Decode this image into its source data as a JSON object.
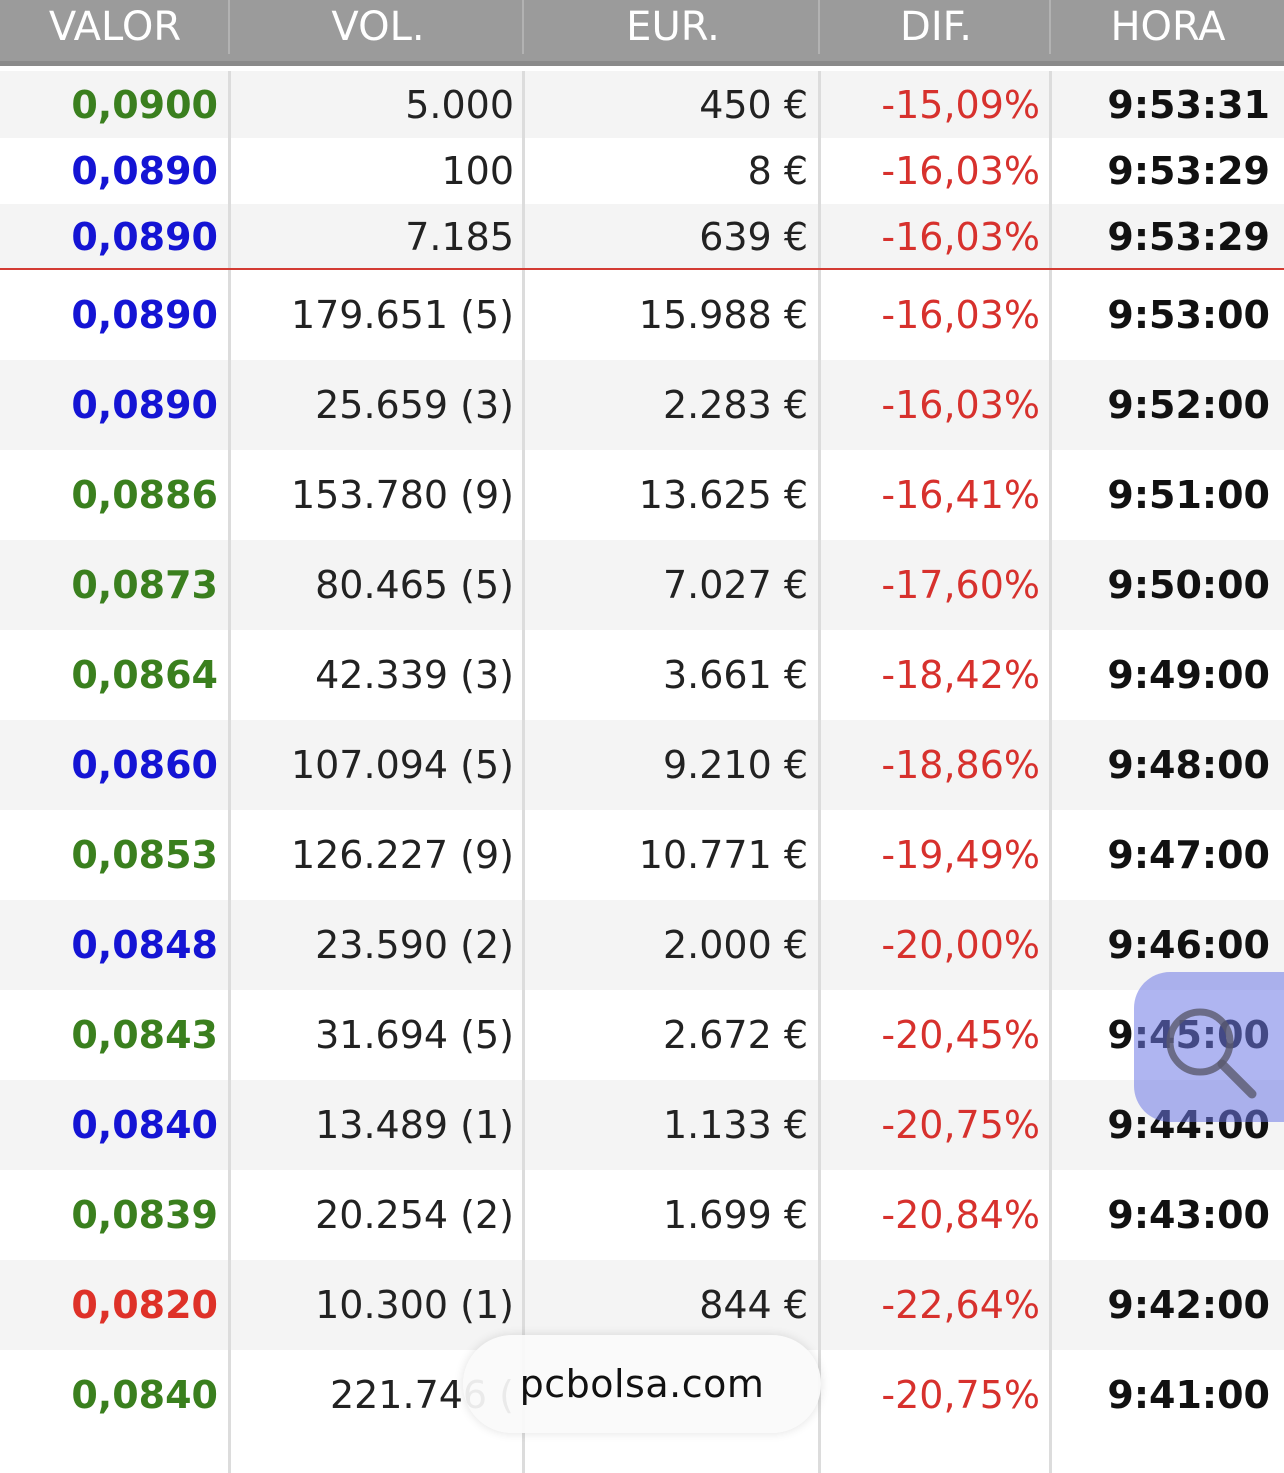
{
  "headers": [
    "VALOR",
    "VOL.",
    "EUR.",
    "DIF.",
    "HORA"
  ],
  "rows": [
    {
      "valor": "0,0900",
      "color": "#3a7f1e",
      "vol": "5.000",
      "eur": "450 €",
      "dif": "-15,09%",
      "hora": "9:53:31"
    },
    {
      "valor": "0,0890",
      "color": "#1414d4",
      "vol": "100",
      "eur": "8 €",
      "dif": "-16,03%",
      "hora": "9:53:29"
    },
    {
      "valor": "0,0890",
      "color": "#1414d4",
      "vol": "7.185",
      "eur": "639 €",
      "dif": "-16,03%",
      "hora": "9:53:29"
    },
    {
      "valor": "0,0890",
      "color": "#1414d4",
      "vol": "179.651 (5)",
      "eur": "15.988 €",
      "dif": "-16,03%",
      "hora": "9:53:00"
    },
    {
      "valor": "0,0890",
      "color": "#1414d4",
      "vol": "25.659 (3)",
      "eur": "2.283 €",
      "dif": "-16,03%",
      "hora": "9:52:00"
    },
    {
      "valor": "0,0886",
      "color": "#3a7f1e",
      "vol": "153.780 (9)",
      "eur": "13.625 €",
      "dif": "-16,41%",
      "hora": "9:51:00"
    },
    {
      "valor": "0,0873",
      "color": "#3a7f1e",
      "vol": "80.465 (5)",
      "eur": "7.027 €",
      "dif": "-17,60%",
      "hora": "9:50:00"
    },
    {
      "valor": "0,0864",
      "color": "#3a7f1e",
      "vol": "42.339 (3)",
      "eur": "3.661 €",
      "dif": "-18,42%",
      "hora": "9:49:00"
    },
    {
      "valor": "0,0860",
      "color": "#1414d4",
      "vol": "107.094 (5)",
      "eur": "9.210 €",
      "dif": "-18,86%",
      "hora": "9:48:00"
    },
    {
      "valor": "0,0853",
      "color": "#3a7f1e",
      "vol": "126.227 (9)",
      "eur": "10.771 €",
      "dif": "-19,49%",
      "hora": "9:47:00"
    },
    {
      "valor": "0,0848",
      "color": "#1414d4",
      "vol": "23.590 (2)",
      "eur": "2.000 €",
      "dif": "-20,00%",
      "hora": "9:46:00"
    },
    {
      "valor": "0,0843",
      "color": "#3a7f1e",
      "vol": "31.694 (5)",
      "eur": "2.672 €",
      "dif": "-20,45%",
      "hora": "9:45:00"
    },
    {
      "valor": "0,0840",
      "color": "#1414d4",
      "vol": "13.489 (1)",
      "eur": "1.133 €",
      "dif": "-20,75%",
      "hora": "9:44:00"
    },
    {
      "valor": "0,0839",
      "color": "#3a7f1e",
      "vol": "20.254 (2)",
      "eur": "1.699 €",
      "dif": "-20,84%",
      "hora": "9:43:00"
    },
    {
      "valor": "0,0820",
      "color": "#de3128",
      "vol": "10.300 (1)",
      "eur": "844 €",
      "dif": "-22,64%",
      "hora": "9:42:00"
    },
    {
      "valor": "0,0840",
      "color": "#3a7f1e",
      "vol": "221.746 (",
      "eur": "",
      "dif": "-20,75%",
      "hora": "9:41:00"
    }
  ],
  "zoom_button": {
    "icon": "magnifier-icon"
  },
  "url_pill": {
    "text": "pcbolsa.com"
  }
}
